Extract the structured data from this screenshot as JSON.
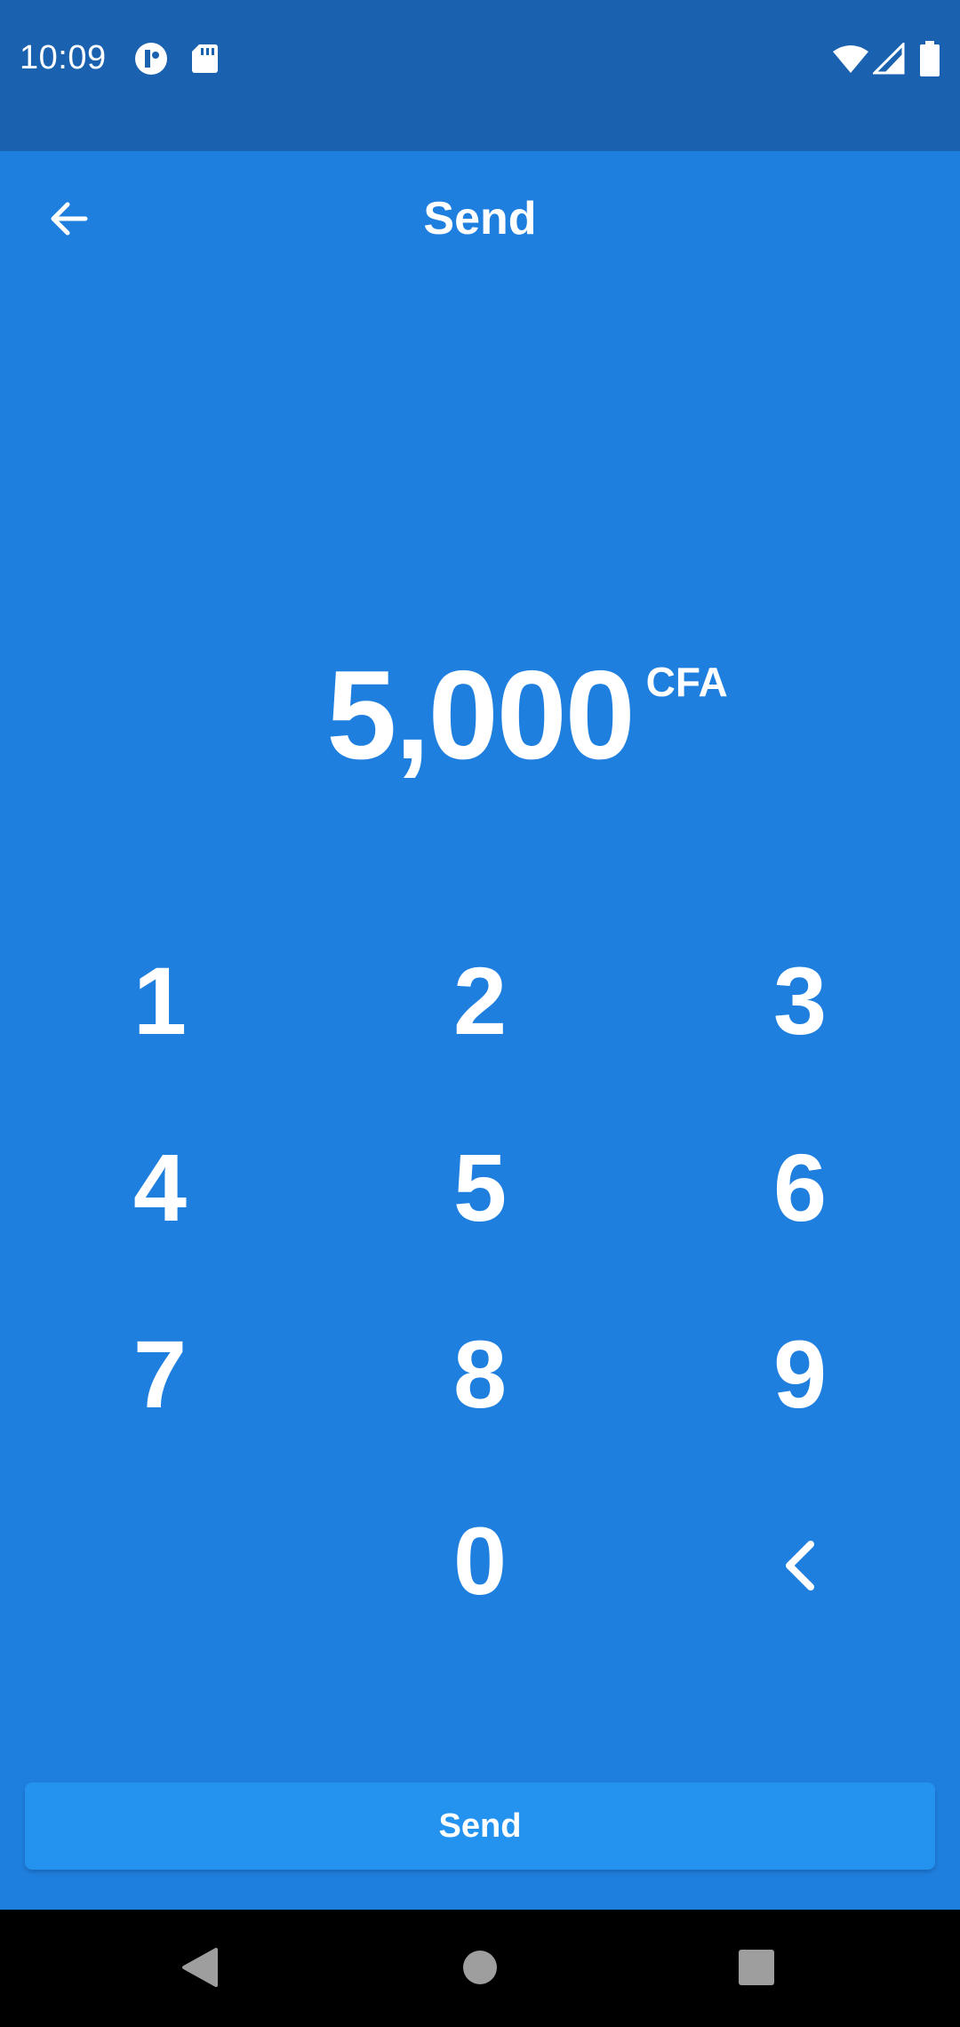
{
  "status_bar": {
    "time": "10:09",
    "icons_left": [
      "data-saver-icon",
      "sd-card-icon"
    ],
    "icons_right": [
      "wifi-icon",
      "cell-signal-icon",
      "battery-icon"
    ]
  },
  "app_bar": {
    "title": "Send",
    "back_icon": "arrow-back-icon"
  },
  "amount": {
    "value": "5,000",
    "currency": "CFA"
  },
  "keypad": {
    "keys": [
      "1",
      "2",
      "3",
      "4",
      "5",
      "6",
      "7",
      "8",
      "9",
      "",
      "0"
    ],
    "backspace_icon": "chevron-left-icon"
  },
  "actions": {
    "send_label": "Send"
  },
  "nav_bar": {
    "icons": [
      "back-triangle-icon",
      "home-circle-icon",
      "recents-square-icon"
    ]
  },
  "colors": {
    "background": "#1f7fdf",
    "status_bar": "#1a62b0",
    "send_button": "#2393ef",
    "nav_bar": "#000000",
    "text": "#ffffff"
  }
}
